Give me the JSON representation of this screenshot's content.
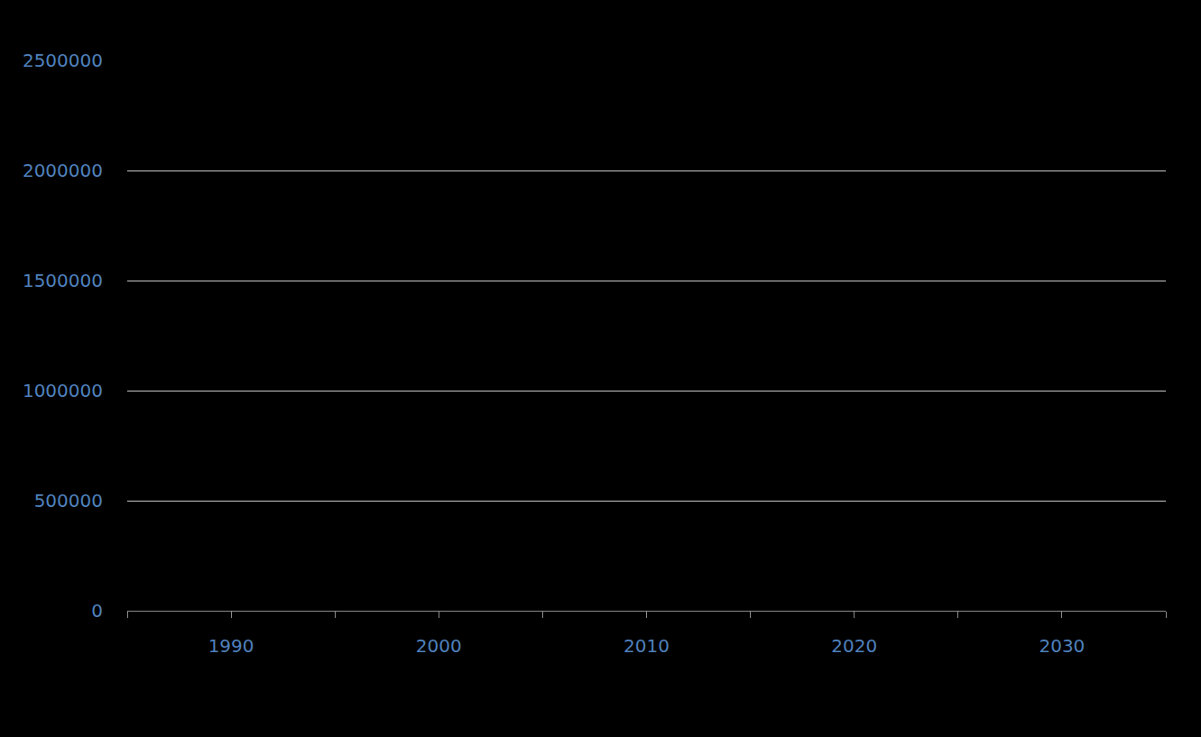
{
  "chart_data": {
    "type": "line",
    "series": [],
    "xlim": [
      1985,
      2035
    ],
    "xticks": [
      1990,
      2000,
      2010,
      2020,
      2030
    ],
    "ylim": [
      0,
      2500000
    ],
    "yticks": [
      0,
      500000,
      1000000,
      1500000,
      2000000,
      2500000
    ],
    "grid": true
  }
}
